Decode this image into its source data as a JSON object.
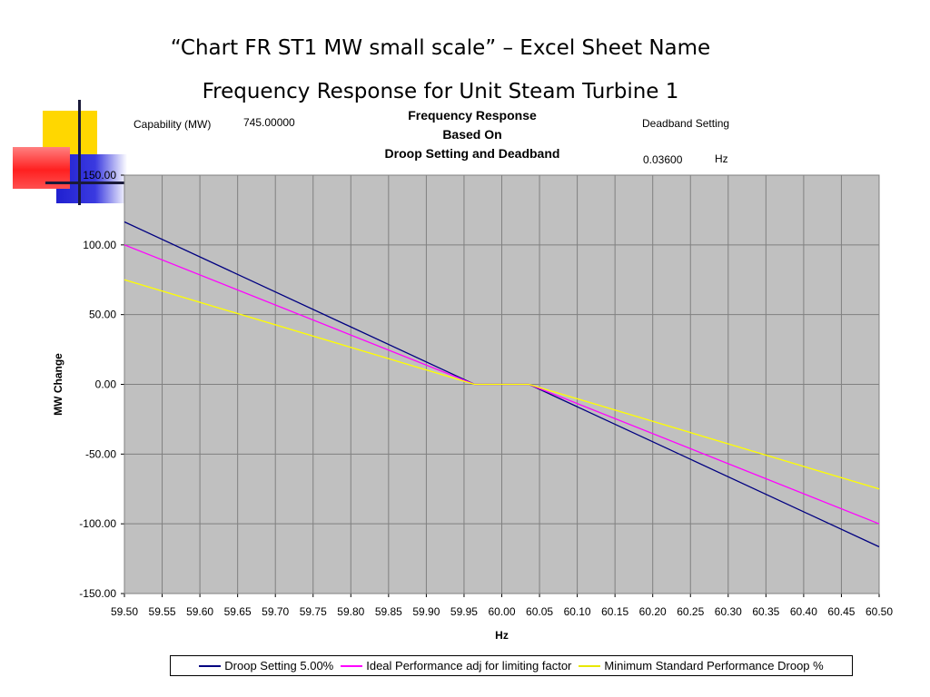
{
  "slide": {
    "title": "“Chart FR ST1 MW small scale” – Excel Sheet Name",
    "subtitle": "Frequency Response for Unit Steam Turbine 1"
  },
  "info": {
    "capability_label": "Capability (MW)",
    "capability_value": "745.00000",
    "deadband_label": "Deadband Setting",
    "deadband_value": "0.03600",
    "deadband_unit": "Hz"
  },
  "chart_data": {
    "type": "line",
    "title_lines": [
      "Frequency Response",
      "Based On",
      "Droop Setting and Deadband"
    ],
    "xlabel": "Hz",
    "ylabel": "MW Change",
    "xlim": [
      59.5,
      60.5
    ],
    "ylim": [
      -150,
      150
    ],
    "x_ticks": [
      "59.50",
      "59.55",
      "59.60",
      "59.65",
      "59.70",
      "59.75",
      "59.80",
      "59.85",
      "59.90",
      "59.95",
      "60.00",
      "60.05",
      "60.10",
      "60.15",
      "60.20",
      "60.25",
      "60.30",
      "60.35",
      "60.40",
      "60.45",
      "60.50"
    ],
    "y_ticks": [
      "150.00",
      "100.00",
      "50.00",
      "0.00",
      "-50.00",
      "-100.00",
      "-150.00"
    ],
    "grid": true,
    "legend_position": "bottom",
    "series": [
      {
        "name": "Droop Setting 5.00%",
        "color": "#000080",
        "x": [
          59.5,
          59.964,
          60.036,
          60.5
        ],
        "y": [
          116.5,
          0,
          0,
          -116.5
        ]
      },
      {
        "name": "Ideal Performance adj for limiting factor",
        "color": "#ff00ff",
        "x": [
          59.5,
          59.964,
          60.036,
          60.5
        ],
        "y": [
          100,
          0,
          0,
          -100
        ]
      },
      {
        "name": "Minimum Standard Performance Droop %",
        "color": "#ffff00",
        "x": [
          59.5,
          59.964,
          60.036,
          60.5
        ],
        "y": [
          75,
          0,
          0,
          -75
        ]
      }
    ]
  }
}
